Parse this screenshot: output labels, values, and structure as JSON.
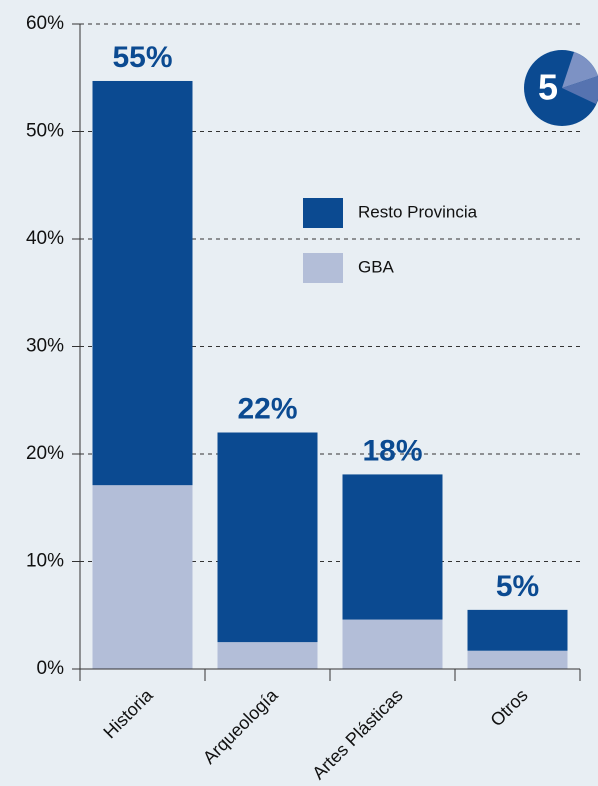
{
  "badge": "5",
  "chart_data": {
    "type": "stacked-bar",
    "categories": [
      "Historia",
      "Arqueología",
      "Artes Plásticas",
      "Otros"
    ],
    "series": [
      {
        "name": "GBA",
        "color": "#b3bed8",
        "values": [
          17.1,
          2.5,
          4.6,
          1.7
        ]
      },
      {
        "name": "Resto Provincia",
        "color": "#0b4a91",
        "values": [
          37.6,
          19.5,
          13.5,
          3.8
        ]
      }
    ],
    "totals": {
      "values": [
        55,
        22,
        18,
        5
      ],
      "value_labels": [
        "55%",
        "22%",
        "18%",
        "5%"
      ]
    },
    "ylim": [
      0,
      60
    ],
    "yticks": [
      {
        "value": 0,
        "label": "0%"
      },
      {
        "value": 10,
        "label": "10%"
      },
      {
        "value": 20,
        "label": "20%"
      },
      {
        "value": 30,
        "label": "30%"
      },
      {
        "value": 40,
        "label": "40%"
      },
      {
        "value": 50,
        "label": "50%"
      },
      {
        "value": 60,
        "label": "60%"
      }
    ],
    "grid": true
  }
}
